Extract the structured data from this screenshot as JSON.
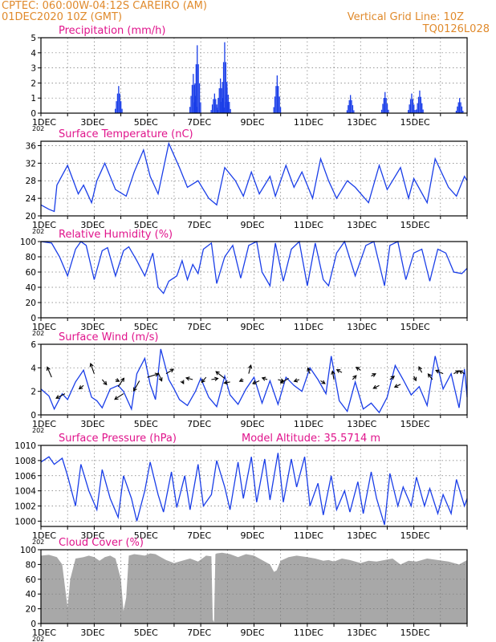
{
  "header": {
    "line1_left": "CPTEC:   060:00W-04:12S  CAREIRO (AM)",
    "line2_left": "01DEC2020 10Z (GMT)",
    "line2_right": "Vertical Grid Line: 10Z",
    "line3_right": "TQ0126L028"
  },
  "colors": {
    "header": "#e08a2c",
    "panel_title": "#e0148c",
    "series": "#1a3ee8",
    "cloud": "#a8a8a8",
    "axis": "#000000"
  },
  "x_axis": {
    "tick_labels": [
      "1DEC",
      "3DEC",
      "5DEC",
      "7DEC",
      "9DEC",
      "11DEC",
      "13DEC",
      "15DEC"
    ],
    "year_fragment": "202"
  },
  "chart_data": [
    {
      "type": "bar",
      "title": "Precipitation (mm/h)",
      "ylim": [
        0,
        5
      ],
      "yticks": [
        "0",
        "1",
        "2",
        "3",
        "4",
        "5"
      ],
      "events": [
        [
          2.9,
          1.8
        ],
        [
          5.7,
          2.6
        ],
        [
          5.85,
          4.5
        ],
        [
          6.5,
          1.3
        ],
        [
          6.72,
          2.3
        ],
        [
          6.88,
          4.7
        ],
        [
          6.97,
          1.7
        ],
        [
          8.85,
          2.5
        ],
        [
          11.6,
          1.2
        ],
        [
          12.9,
          1.4
        ],
        [
          13.9,
          1.3
        ],
        [
          14.2,
          1.5
        ],
        [
          15.7,
          1.0
        ]
      ]
    },
    {
      "type": "line",
      "title": "Surface Temperature (nC)",
      "ylim": [
        20,
        37
      ],
      "yticks": [
        "20",
        "24",
        "28",
        "32",
        "36"
      ],
      "x": [
        0,
        0.3,
        0.5,
        0.6,
        1.0,
        1.4,
        1.6,
        1.9,
        2.1,
        2.4,
        2.8,
        3.2,
        3.5,
        3.85,
        4.1,
        4.4,
        4.8,
        5.2,
        5.5,
        5.9,
        6.3,
        6.6,
        6.9,
        7.3,
        7.6,
        7.9,
        8.2,
        8.6,
        8.8,
        9.2,
        9.5,
        9.8,
        10.2,
        10.5,
        10.8,
        11.1,
        11.5,
        11.8,
        12.3,
        12.7,
        13.0,
        13.5,
        13.8,
        14.0,
        14.5,
        14.8,
        15.3,
        15.6,
        15.9,
        16.0
      ],
      "y": [
        22.5,
        21.5,
        21,
        27,
        31.5,
        25,
        27,
        23,
        28,
        32,
        26,
        24.5,
        30,
        35,
        29,
        25,
        36.5,
        31,
        26.5,
        28,
        24,
        22.5,
        31,
        28,
        24.5,
        30,
        25,
        29,
        24.5,
        31.5,
        26.5,
        30,
        24,
        33,
        28,
        24,
        28,
        26.5,
        23,
        31.5,
        26,
        31,
        24,
        28.5,
        23,
        33,
        26.5,
        24.5,
        29,
        28
      ]
    },
    {
      "type": "line",
      "title": "Relative Humidity (%)",
      "ylim": [
        0,
        100
      ],
      "yticks": [
        "0",
        "20",
        "40",
        "60",
        "80",
        "100"
      ],
      "x": [
        0,
        0.4,
        0.7,
        1.0,
        1.3,
        1.5,
        1.7,
        2.0,
        2.3,
        2.5,
        2.8,
        3.1,
        3.3,
        3.6,
        3.9,
        4.2,
        4.4,
        4.6,
        4.8,
        5.1,
        5.3,
        5.5,
        5.7,
        5.9,
        6.1,
        6.4,
        6.6,
        6.9,
        7.2,
        7.5,
        7.8,
        8.1,
        8.3,
        8.6,
        8.8,
        9.1,
        9.4,
        9.7,
        10.0,
        10.3,
        10.6,
        10.8,
        11.1,
        11.4,
        11.8,
        12.2,
        12.5,
        12.9,
        13.1,
        13.4,
        13.7,
        14.0,
        14.3,
        14.6,
        14.9,
        15.2,
        15.5,
        15.8,
        16.0
      ],
      "y": [
        100,
        98,
        80,
        55,
        90,
        100,
        95,
        50,
        88,
        92,
        55,
        88,
        93,
        75,
        55,
        85,
        40,
        32,
        48,
        55,
        75,
        50,
        70,
        58,
        90,
        98,
        45,
        80,
        95,
        52,
        95,
        100,
        60,
        42,
        98,
        48,
        90,
        100,
        42,
        98,
        50,
        42,
        85,
        100,
        55,
        95,
        100,
        42,
        95,
        100,
        50,
        85,
        90,
        48,
        90,
        85,
        60,
        58,
        65
      ]
    },
    {
      "type": "line",
      "title": "Surface Wind (m/s)",
      "ylim": [
        0,
        6
      ],
      "yticks": [
        "0",
        "2",
        "4",
        "6"
      ],
      "x": [
        0,
        0.3,
        0.5,
        0.8,
        1.0,
        1.3,
        1.6,
        1.9,
        2.1,
        2.3,
        2.6,
        2.9,
        3.1,
        3.4,
        3.6,
        3.9,
        4.1,
        4.3,
        4.5,
        4.8,
        5.0,
        5.2,
        5.5,
        5.8,
        6.0,
        6.3,
        6.6,
        6.9,
        7.1,
        7.4,
        7.7,
        8.0,
        8.3,
        8.6,
        8.9,
        9.2,
        9.5,
        9.8,
        10.1,
        10.4,
        10.7,
        10.9,
        11.2,
        11.5,
        11.8,
        12.1,
        12.4,
        12.7,
        13.0,
        13.3,
        13.6,
        13.9,
        14.2,
        14.5,
        14.8,
        15.1,
        15.4,
        15.7,
        15.9,
        16.0
      ],
      "y": [
        2.2,
        1.6,
        0.5,
        1.8,
        1.3,
        2.8,
        3.8,
        1.5,
        1.2,
        0.6,
        2.2,
        2.5,
        2.0,
        0.5,
        3.5,
        4.8,
        2.6,
        1.3,
        5.6,
        3.0,
        2.2,
        1.3,
        0.8,
        2.0,
        3.1,
        1.5,
        0.7,
        3.3,
        1.7,
        0.9,
        2.2,
        3.2,
        1.0,
        2.9,
        0.9,
        3.2,
        2.5,
        2.0,
        4.0,
        3.0,
        1.8,
        5.0,
        1.2,
        0.3,
        2.8,
        0.5,
        1.0,
        0.2,
        1.5,
        4.2,
        3.0,
        1.7,
        2.4,
        0.8,
        5.0,
        2.2,
        3.5,
        0.6,
        3.9,
        1.5
      ],
      "arrows": [
        [
          0.4,
          3.2,
          -0.6,
          1.8
        ],
        [
          0.9,
          1.8,
          -1.2,
          -0.8
        ],
        [
          1.6,
          2.5,
          -0.6,
          -0.6
        ],
        [
          2.0,
          3.5,
          -0.5,
          1.8
        ],
        [
          2.3,
          3.0,
          0.6,
          -0.9
        ],
        [
          2.8,
          3.0,
          0.5,
          -0.3
        ],
        [
          2.9,
          2.4,
          0.8,
          1.5
        ],
        [
          3.1,
          1.8,
          -1.2,
          -1.0
        ],
        [
          3.7,
          2.9,
          -0.8,
          -1.8
        ],
        [
          4.0,
          3.2,
          1.5,
          0.6
        ],
        [
          4.4,
          3.6,
          0.5,
          -1.5
        ],
        [
          4.7,
          3.5,
          1.0,
          0.8
        ],
        [
          5.3,
          2.9,
          0.2,
          -0.5
        ],
        [
          5.7,
          3.0,
          -0.9,
          0.3
        ],
        [
          6.2,
          3.2,
          -0.6,
          -0.9
        ],
        [
          6.4,
          3.0,
          0.9,
          0.2
        ],
        [
          6.9,
          3.1,
          -1.2,
          1.2
        ],
        [
          7.1,
          2.8,
          -0.8,
          -0.2
        ],
        [
          7.6,
          3.0,
          -0.5,
          -0.3
        ],
        [
          7.8,
          3.5,
          0.3,
          1.5
        ],
        [
          8.2,
          2.9,
          -0.9,
          -0.5
        ],
        [
          8.5,
          3.0,
          -0.7,
          0.3
        ],
        [
          8.9,
          3.0,
          0.8,
          -0.3
        ],
        [
          9.3,
          3.1,
          -1.1,
          -0.8
        ],
        [
          9.7,
          3.0,
          -0.7,
          -0.3
        ],
        [
          10.1,
          3.5,
          -0.3,
          1.0
        ],
        [
          10.5,
          2.9,
          0.6,
          -0.5
        ],
        [
          11.0,
          3.0,
          -0.2,
          1.5
        ],
        [
          11.3,
          3.6,
          -0.7,
          0.5
        ],
        [
          11.7,
          3.0,
          0.5,
          0.7
        ],
        [
          12.0,
          3.8,
          -0.6,
          0.5
        ],
        [
          12.4,
          3.3,
          0.6,
          0.4
        ],
        [
          12.7,
          2.5,
          -0.8,
          -0.5
        ],
        [
          13.1,
          3.0,
          0.6,
          0.6
        ],
        [
          13.5,
          2.6,
          -0.8,
          -0.5
        ],
        [
          14.0,
          3.3,
          0.3,
          -0.8
        ],
        [
          14.3,
          3.6,
          -0.4,
          1.0
        ],
        [
          14.7,
          3.0,
          -0.6,
          1.0
        ],
        [
          15.1,
          3.5,
          -1.0,
          0.6
        ],
        [
          15.5,
          3.5,
          0.7,
          0.5
        ],
        [
          15.9,
          3.5,
          -0.7,
          0.5
        ]
      ]
    },
    {
      "type": "line",
      "title": "Surface Pressure (hPa)",
      "annotation": "Model Altitude: 35.5714 m",
      "ylim": [
        999.3,
        1010
      ],
      "yticks": [
        "1000",
        "1002",
        "1004",
        "1006",
        "1008",
        "1010"
      ],
      "x": [
        0,
        0.3,
        0.5,
        0.8,
        1.0,
        1.3,
        1.5,
        1.8,
        2.1,
        2.3,
        2.6,
        2.9,
        3.1,
        3.4,
        3.6,
        3.9,
        4.1,
        4.4,
        4.6,
        4.9,
        5.1,
        5.4,
        5.6,
        5.9,
        6.1,
        6.4,
        6.6,
        6.9,
        7.1,
        7.4,
        7.6,
        7.9,
        8.1,
        8.4,
        8.6,
        8.9,
        9.1,
        9.4,
        9.6,
        9.9,
        10.1,
        10.4,
        10.6,
        10.9,
        11.1,
        11.4,
        11.6,
        11.9,
        12.1,
        12.4,
        12.6,
        12.9,
        13.1,
        13.4,
        13.6,
        13.9,
        14.1,
        14.4,
        14.6,
        14.9,
        15.1,
        15.4,
        15.6,
        15.9,
        16.0
      ],
      "y": [
        1007.8,
        1008.5,
        1007.5,
        1008.3,
        1006,
        1002,
        1007.5,
        1004,
        1001.5,
        1006.8,
        1003,
        1000.5,
        1006,
        1003,
        1000,
        1004,
        1007.8,
        1003.5,
        1001.2,
        1006.5,
        1001.8,
        1006,
        1001.5,
        1007.5,
        1002,
        1003.5,
        1008,
        1004.5,
        1001.5,
        1007.8,
        1003,
        1008.5,
        1002.5,
        1008.2,
        1002.8,
        1009,
        1002.5,
        1008.2,
        1004.5,
        1008.5,
        1002,
        1005,
        1000.8,
        1006,
        1001.5,
        1004,
        1001.2,
        1005.2,
        1001,
        1006.5,
        1003,
        999.5,
        1006.3,
        1002,
        1004.5,
        1002,
        1005.8,
        1002,
        1004.3,
        1001,
        1003.5,
        1001,
        1005.5,
        1002,
        1003
      ]
    },
    {
      "type": "area",
      "title": "Cloud Cover (%)",
      "ylim": [
        0,
        100
      ],
      "yticks": [
        "0",
        "20",
        "40",
        "60",
        "80",
        "100"
      ],
      "x": [
        0,
        0.3,
        0.6,
        0.8,
        0.9,
        1.0,
        1.1,
        1.3,
        1.6,
        1.8,
        2.0,
        2.2,
        2.4,
        2.6,
        2.8,
        3.0,
        3.1,
        3.2,
        3.3,
        3.5,
        3.7,
        3.9,
        4.1,
        4.3,
        4.5,
        4.7,
        5.0,
        5.3,
        5.6,
        5.9,
        6.2,
        6.4,
        6.45,
        6.5,
        6.55,
        6.6,
        6.8,
        7.1,
        7.4,
        7.7,
        8.0,
        8.3,
        8.6,
        8.75,
        8.85,
        9.0,
        9.3,
        9.6,
        10.0,
        10.3,
        10.6,
        10.8,
        11.0,
        11.3,
        11.6,
        12.0,
        12.3,
        12.6,
        12.9,
        13.2,
        13.5,
        13.8,
        14.1,
        14.5,
        14.9,
        15.3,
        15.7,
        16.0
      ],
      "y": [
        92,
        93,
        90,
        80,
        50,
        22,
        60,
        88,
        90,
        92,
        90,
        85,
        90,
        92,
        88,
        60,
        17,
        35,
        92,
        94,
        93,
        92,
        95,
        94,
        90,
        86,
        82,
        85,
        88,
        84,
        92,
        91,
        5,
        2,
        94,
        95,
        96,
        94,
        90,
        94,
        92,
        86,
        80,
        70,
        72,
        85,
        90,
        92,
        90,
        88,
        85,
        86,
        84,
        88,
        86,
        82,
        85,
        84,
        86,
        88,
        80,
        85,
        84,
        88,
        86,
        84,
        80,
        86
      ]
    }
  ]
}
